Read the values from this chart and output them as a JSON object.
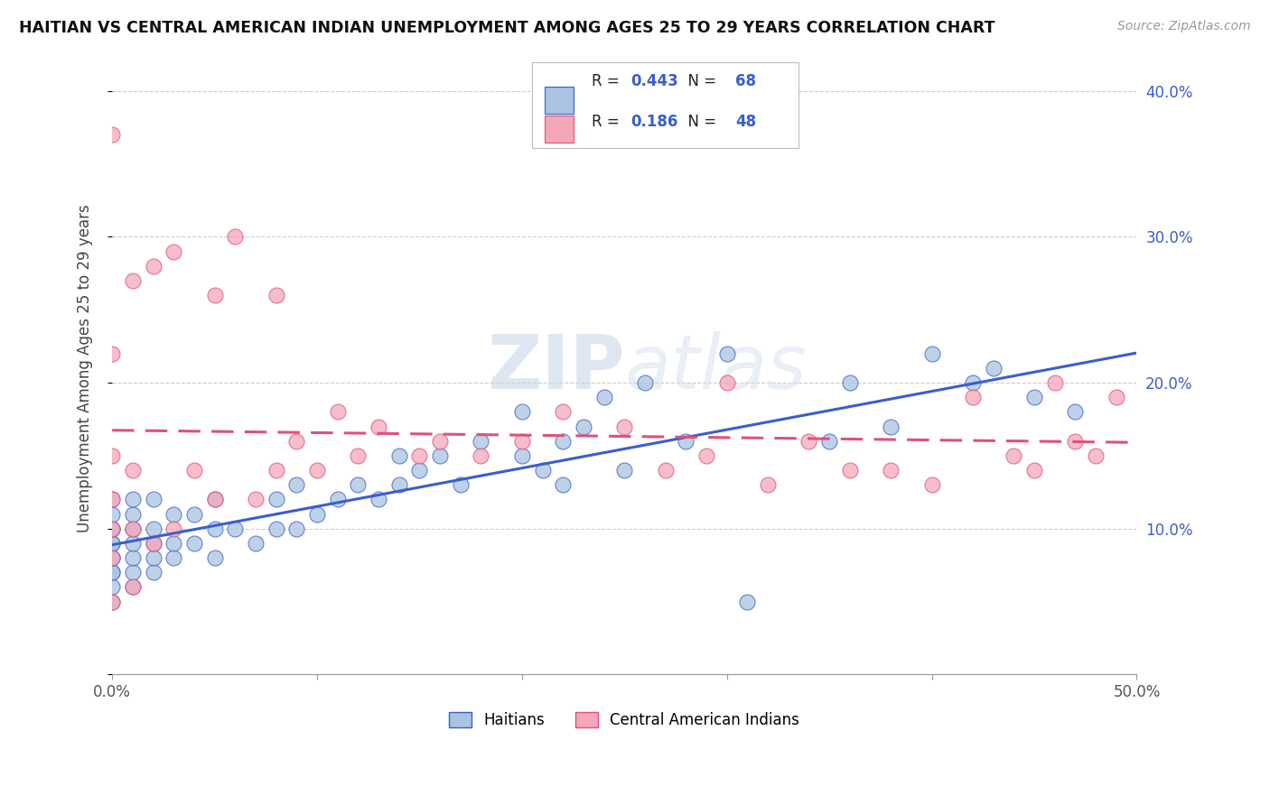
{
  "title": "HAITIAN VS CENTRAL AMERICAN INDIAN UNEMPLOYMENT AMONG AGES 25 TO 29 YEARS CORRELATION CHART",
  "source": "Source: ZipAtlas.com",
  "ylabel": "Unemployment Among Ages 25 to 29 years",
  "legend_labels": [
    "Haitians",
    "Central American Indians"
  ],
  "r_haitian": 0.443,
  "n_haitian": 68,
  "r_central": 0.186,
  "n_central": 48,
  "xmin": 0.0,
  "xmax": 0.5,
  "ymin": 0.0,
  "ymax": 0.42,
  "yticks": [
    0.0,
    0.1,
    0.2,
    0.3,
    0.4
  ],
  "ytick_labels": [
    "",
    "10.0%",
    "20.0%",
    "30.0%",
    "40.0%"
  ],
  "xticks": [
    0.0,
    0.1,
    0.2,
    0.3,
    0.4,
    0.5
  ],
  "xtick_labels": [
    "0.0%",
    "",
    "",
    "",
    "",
    "50.0%"
  ],
  "haitian_color": "#a8c4e0",
  "central_color": "#f4a7b9",
  "haitian_line_color": "#3a5ecc",
  "central_line_color": "#e0507a",
  "watermark_zip": "ZIP",
  "watermark_atlas": "atlas",
  "haitian_x": [
    0.0,
    0.0,
    0.0,
    0.0,
    0.0,
    0.0,
    0.0,
    0.0,
    0.0,
    0.0,
    0.0,
    0.0,
    0.01,
    0.01,
    0.01,
    0.01,
    0.01,
    0.01,
    0.01,
    0.02,
    0.02,
    0.02,
    0.02,
    0.02,
    0.03,
    0.03,
    0.03,
    0.04,
    0.04,
    0.05,
    0.05,
    0.05,
    0.06,
    0.07,
    0.08,
    0.08,
    0.09,
    0.09,
    0.1,
    0.11,
    0.12,
    0.13,
    0.14,
    0.14,
    0.15,
    0.16,
    0.17,
    0.18,
    0.2,
    0.2,
    0.21,
    0.22,
    0.22,
    0.23,
    0.24,
    0.25,
    0.26,
    0.28,
    0.3,
    0.31,
    0.35,
    0.36,
    0.38,
    0.4,
    0.42,
    0.43,
    0.45,
    0.47
  ],
  "haitian_y": [
    0.05,
    0.06,
    0.07,
    0.07,
    0.08,
    0.08,
    0.09,
    0.09,
    0.1,
    0.1,
    0.11,
    0.12,
    0.06,
    0.07,
    0.08,
    0.09,
    0.1,
    0.11,
    0.12,
    0.07,
    0.08,
    0.09,
    0.1,
    0.12,
    0.08,
    0.09,
    0.11,
    0.09,
    0.11,
    0.08,
    0.1,
    0.12,
    0.1,
    0.09,
    0.1,
    0.12,
    0.1,
    0.13,
    0.11,
    0.12,
    0.13,
    0.12,
    0.13,
    0.15,
    0.14,
    0.15,
    0.13,
    0.16,
    0.15,
    0.18,
    0.14,
    0.16,
    0.13,
    0.17,
    0.19,
    0.14,
    0.2,
    0.16,
    0.22,
    0.05,
    0.16,
    0.2,
    0.17,
    0.22,
    0.2,
    0.21,
    0.19,
    0.18
  ],
  "central_x": [
    0.0,
    0.0,
    0.0,
    0.0,
    0.0,
    0.0,
    0.0,
    0.01,
    0.01,
    0.01,
    0.01,
    0.02,
    0.02,
    0.03,
    0.03,
    0.04,
    0.05,
    0.05,
    0.06,
    0.07,
    0.08,
    0.08,
    0.09,
    0.1,
    0.11,
    0.12,
    0.13,
    0.15,
    0.16,
    0.18,
    0.2,
    0.22,
    0.25,
    0.27,
    0.29,
    0.3,
    0.32,
    0.34,
    0.36,
    0.38,
    0.4,
    0.42,
    0.44,
    0.45,
    0.46,
    0.47,
    0.48,
    0.49
  ],
  "central_y": [
    0.05,
    0.08,
    0.1,
    0.12,
    0.15,
    0.22,
    0.37,
    0.06,
    0.1,
    0.14,
    0.27,
    0.09,
    0.28,
    0.1,
    0.29,
    0.14,
    0.12,
    0.26,
    0.3,
    0.12,
    0.14,
    0.26,
    0.16,
    0.14,
    0.18,
    0.15,
    0.17,
    0.15,
    0.16,
    0.15,
    0.16,
    0.18,
    0.17,
    0.14,
    0.15,
    0.2,
    0.13,
    0.16,
    0.14,
    0.14,
    0.13,
    0.19,
    0.15,
    0.14,
    0.2,
    0.16,
    0.15,
    0.19
  ]
}
